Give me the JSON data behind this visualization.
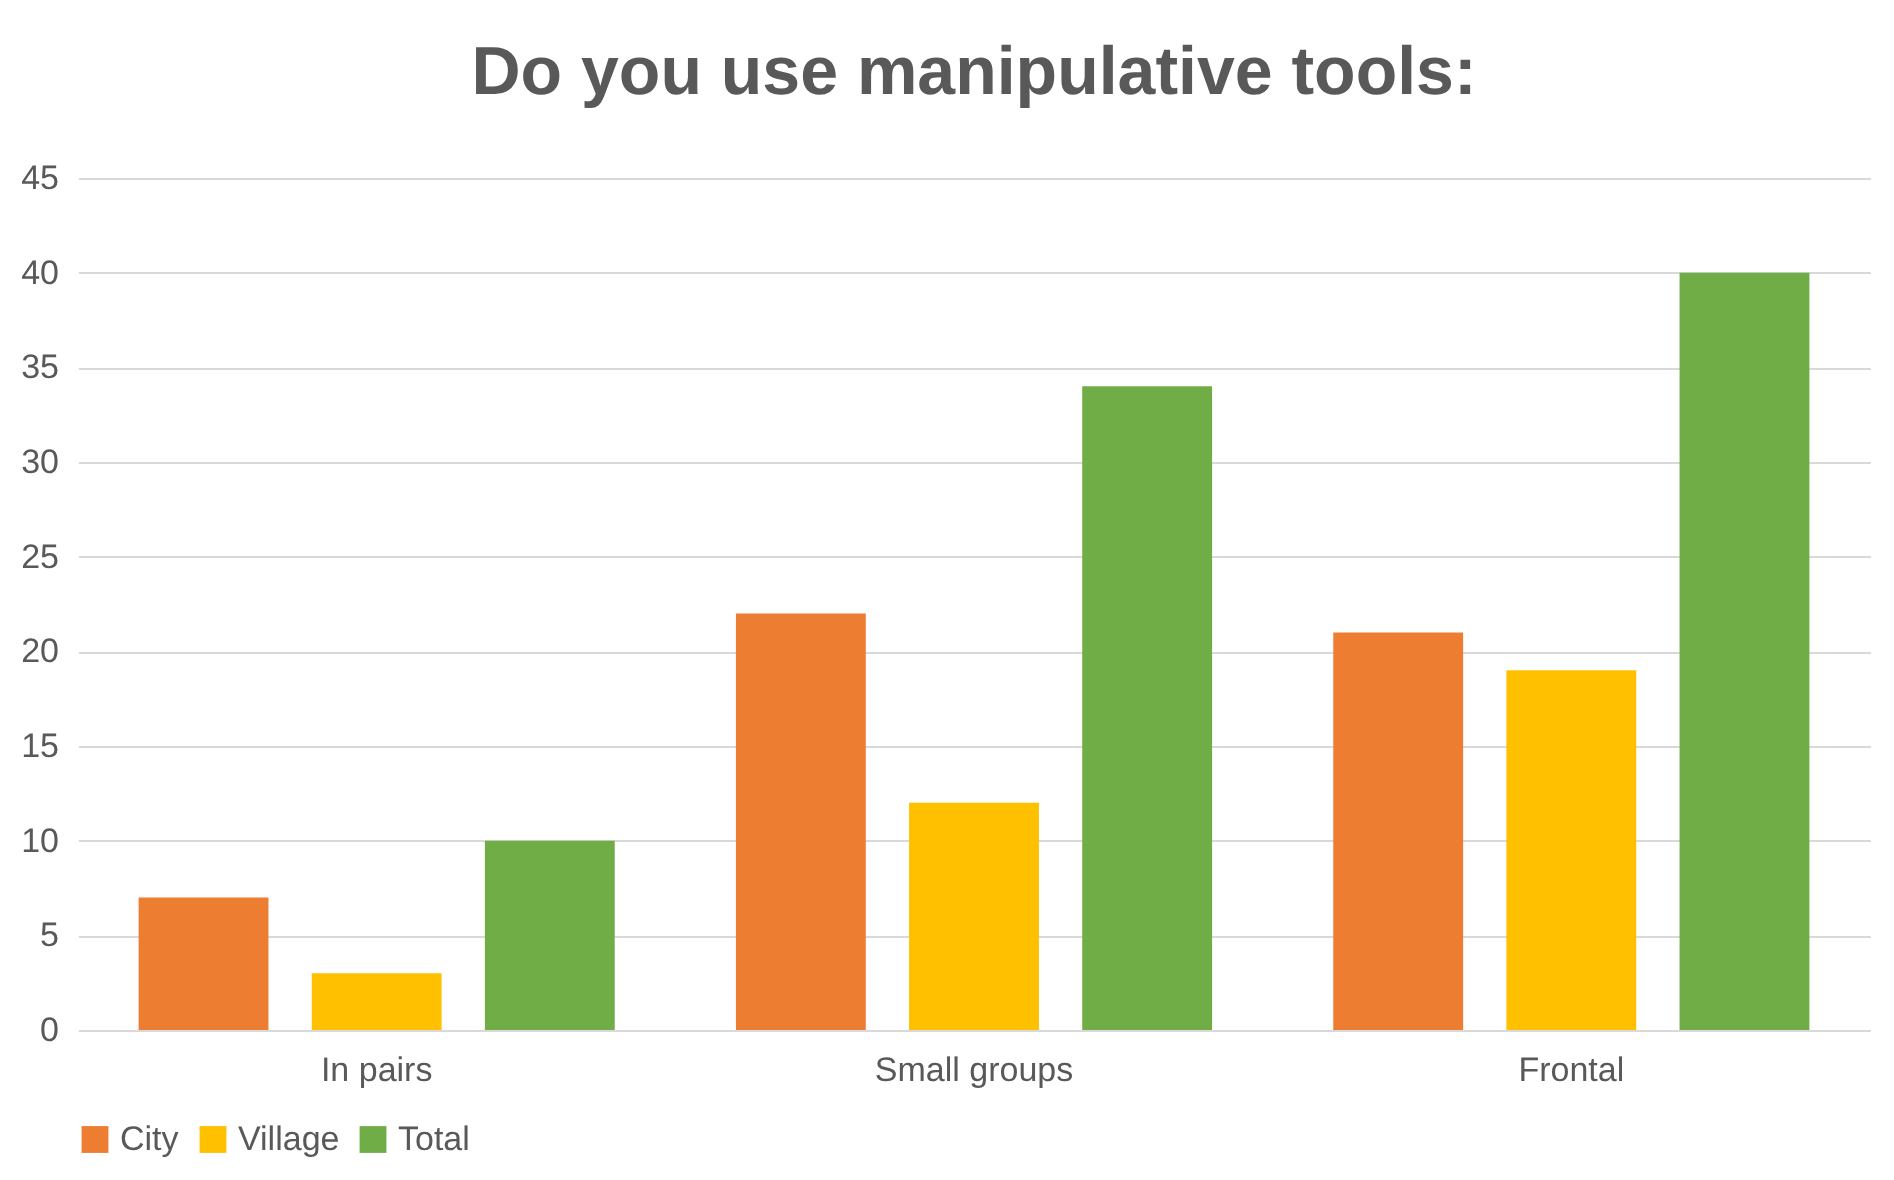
{
  "chart_data": {
    "type": "bar",
    "title": "Do you use manipulative tools:",
    "categories": [
      "In pairs",
      "Small groups",
      "Frontal"
    ],
    "series": [
      {
        "name": "City",
        "color": "#ed7d31",
        "values": [
          7,
          22,
          21
        ]
      },
      {
        "name": "Village",
        "color": "#ffc000",
        "values": [
          3,
          12,
          19
        ]
      },
      {
        "name": "Total",
        "color": "#70ad47",
        "values": [
          10,
          34,
          40
        ]
      }
    ],
    "ylim": [
      0,
      45
    ],
    "yticks": [
      0,
      5,
      10,
      15,
      20,
      25,
      30,
      35,
      40,
      45
    ],
    "grid": "y",
    "legend": "bottom"
  }
}
